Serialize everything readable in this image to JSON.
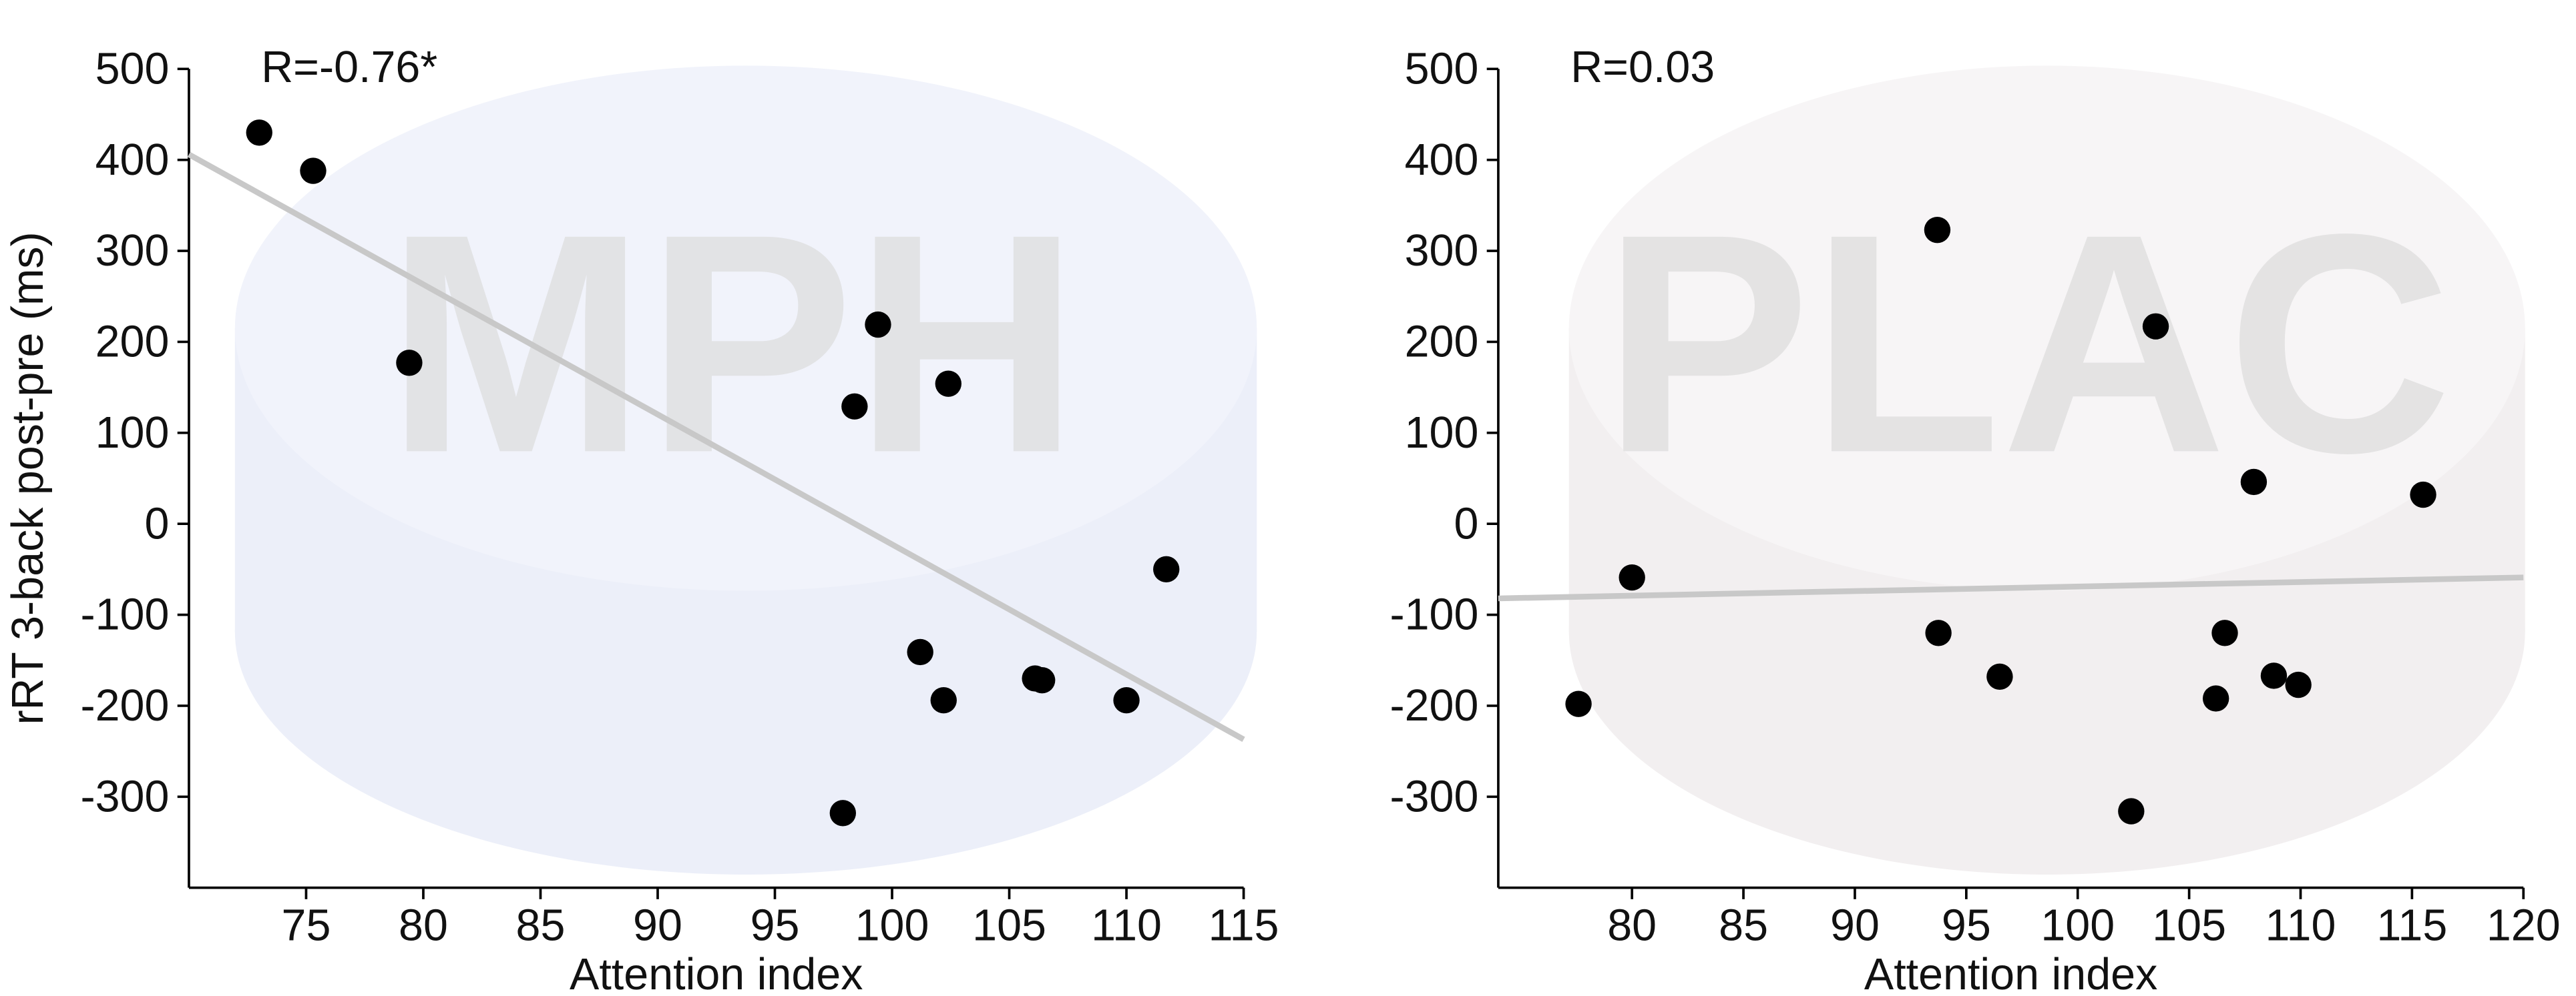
{
  "chart_data": [
    {
      "type": "scatter",
      "watermark": "MPH",
      "annotation": "R=-0.76*",
      "xlabel": "Attention index",
      "ylabel": "rRT 3-back post-pre (ms)",
      "x": [
        73.0,
        75.3,
        79.4,
        99.4,
        98.4,
        102.4,
        111.7,
        101.2,
        102.2,
        106.1,
        106.4,
        110.0,
        97.9
      ],
      "values": [
        430,
        388,
        177,
        219,
        129,
        154,
        -50,
        -141,
        -194,
        -170,
        -172,
        -194,
        -318
      ],
      "color": "#000000",
      "fit_line": {
        "x": [
          70,
          115
        ],
        "values": [
          406,
          -237
        ],
        "color": "#c8c8c8"
      },
      "xlim": [
        70,
        115
      ],
      "ylim": [
        -400,
        500
      ],
      "xticks": [
        75,
        80,
        85,
        90,
        95,
        100,
        105,
        110,
        115
      ],
      "yticks": [
        -300,
        -200,
        -100,
        0,
        100,
        200,
        300,
        400,
        500
      ]
    },
    {
      "type": "scatter",
      "watermark": "PLAC",
      "annotation": "R=0.03",
      "xlabel": "Attention index",
      "x": [
        77.6,
        80.0,
        93.7,
        93.75,
        96.5,
        103.5,
        102.4,
        106.6,
        106.2,
        107.9,
        108.8,
        109.9,
        115.5
      ],
      "values": [
        -198,
        -59,
        323,
        -120,
        -168,
        217,
        -316,
        -120,
        -192,
        46,
        -167,
        -177,
        32
      ],
      "color": "#000000",
      "fit_line": {
        "x": [
          74,
          120
        ],
        "values": [
          -82,
          -59
        ],
        "color": "#c8c8c8"
      },
      "xlim": [
        74,
        120
      ],
      "ylim": [
        -400,
        500
      ],
      "xticks": [
        80,
        85,
        90,
        95,
        100,
        105,
        110,
        115,
        120
      ],
      "yticks": [
        -300,
        -200,
        -100,
        0,
        100,
        200,
        300,
        400,
        500
      ]
    }
  ]
}
